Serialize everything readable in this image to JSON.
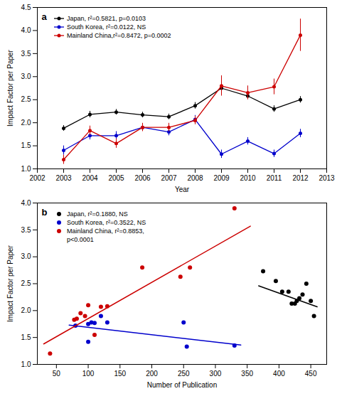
{
  "chart_data": [
    {
      "type": "line",
      "annotations": [
        "a"
      ],
      "x": [
        2003,
        2004,
        2005,
        2006,
        2007,
        2008,
        2009,
        2010,
        2011,
        2012
      ],
      "series": [
        {
          "name": "Japan, r²=0.5821, p=0.0103",
          "color": "#000000",
          "marker": "circle",
          "values": [
            1.88,
            2.18,
            2.23,
            2.17,
            2.13,
            2.37,
            2.75,
            2.58,
            2.3,
            2.5
          ],
          "errors": [
            0.06,
            0.07,
            0.06,
            0.06,
            0.06,
            0.07,
            0.07,
            0.07,
            0.07,
            0.07
          ]
        },
        {
          "name": "South Korea, r²=0.0122, NS",
          "color": "#0000cc",
          "marker": "circle",
          "values": [
            1.4,
            1.72,
            1.72,
            1.9,
            1.8,
            2.07,
            1.32,
            1.6,
            1.33,
            1.77
          ],
          "errors": [
            0.1,
            0.09,
            0.09,
            0.08,
            0.08,
            0.09,
            0.09,
            0.08,
            0.08,
            0.09
          ]
        },
        {
          "name": "Mainland China,r²=0.8472, p=0.0002",
          "color": "#cc0000",
          "marker": "circle",
          "values": [
            1.2,
            1.83,
            1.55,
            1.9,
            1.9,
            2.05,
            2.8,
            2.65,
            2.78,
            3.9
          ],
          "errors": [
            0.1,
            0.1,
            0.1,
            0.09,
            0.09,
            0.09,
            0.22,
            0.15,
            0.17,
            0.35
          ]
        }
      ],
      "xlabel": "Year",
      "ylabel": "Impact Factor per Paper",
      "xlim": [
        2002,
        2013
      ],
      "ylim": [
        1.0,
        4.5
      ],
      "xticks": [
        2002,
        2003,
        2004,
        2005,
        2006,
        2007,
        2008,
        2009,
        2010,
        2011,
        2012,
        2013
      ],
      "yticks": [
        {
          "value": 1.0,
          "label": "1.0"
        },
        1.5,
        {
          "value": 2.0,
          "label": "2.0"
        },
        2.5,
        {
          "value": 3.0,
          "label": "3.0"
        },
        3.5,
        {
          "value": 4.0,
          "label": "4.0"
        },
        4.5
      ],
      "legend": "upper left",
      "grid": false
    },
    {
      "type": "scatter",
      "annotations": [
        "b"
      ],
      "series": [
        {
          "name": "Japan, r²=0.1880, NS",
          "color": "#000000",
          "marker": "circle",
          "x": [
            375,
            395,
            405,
            415,
            420,
            425,
            428,
            432,
            437,
            443,
            450,
            455
          ],
          "values": [
            2.73,
            2.55,
            2.35,
            2.35,
            2.13,
            2.13,
            2.18,
            2.23,
            2.3,
            2.5,
            2.18,
            1.9
          ],
          "trendline": {
            "x": [
              368,
              460
            ],
            "values": [
              2.46,
              2.07
            ]
          }
        },
        {
          "name": "South Korea, r²=0.3522, NS",
          "color": "#0000cc",
          "marker": "circle",
          "x": [
            80,
            100,
            100,
            105,
            110,
            120,
            130,
            250,
            255,
            330
          ],
          "values": [
            1.72,
            1.75,
            1.42,
            1.78,
            1.77,
            1.9,
            1.78,
            1.78,
            1.33,
            1.35
          ],
          "trendline": {
            "x": [
              70,
              340
            ],
            "values": [
              1.73,
              1.36
            ]
          }
        },
        {
          "name": "Mainland China, r²=0.8853,\np<0.0001",
          "color": "#cc0000",
          "marker": "circle",
          "x": [
            40,
            78,
            82,
            88,
            95,
            100,
            110,
            120,
            130,
            185,
            245,
            260,
            330
          ],
          "values": [
            1.2,
            1.83,
            1.85,
            1.95,
            1.9,
            2.1,
            1.55,
            2.07,
            2.08,
            2.8,
            2.63,
            2.8,
            3.9
          ],
          "trendline": {
            "x": [
              30,
              355
            ],
            "values": [
              1.38,
              3.57
            ]
          }
        }
      ],
      "xlabel": "Number of Publication",
      "ylabel": "Impact Factor per Paper",
      "xlim": [
        20,
        475
      ],
      "ylim": [
        1.0,
        4.0
      ],
      "xticks": [
        50,
        100,
        150,
        200,
        250,
        300,
        350,
        400,
        450
      ],
      "yticks": [
        {
          "value": 1.0,
          "label": "1.0"
        },
        1.5,
        {
          "value": 2.0,
          "label": "2.0"
        },
        2.5,
        {
          "value": 3.0,
          "label": "3.0"
        },
        3.5,
        {
          "value": 4.0,
          "label": "4.0"
        }
      ],
      "legend": "upper left",
      "grid": false
    }
  ]
}
